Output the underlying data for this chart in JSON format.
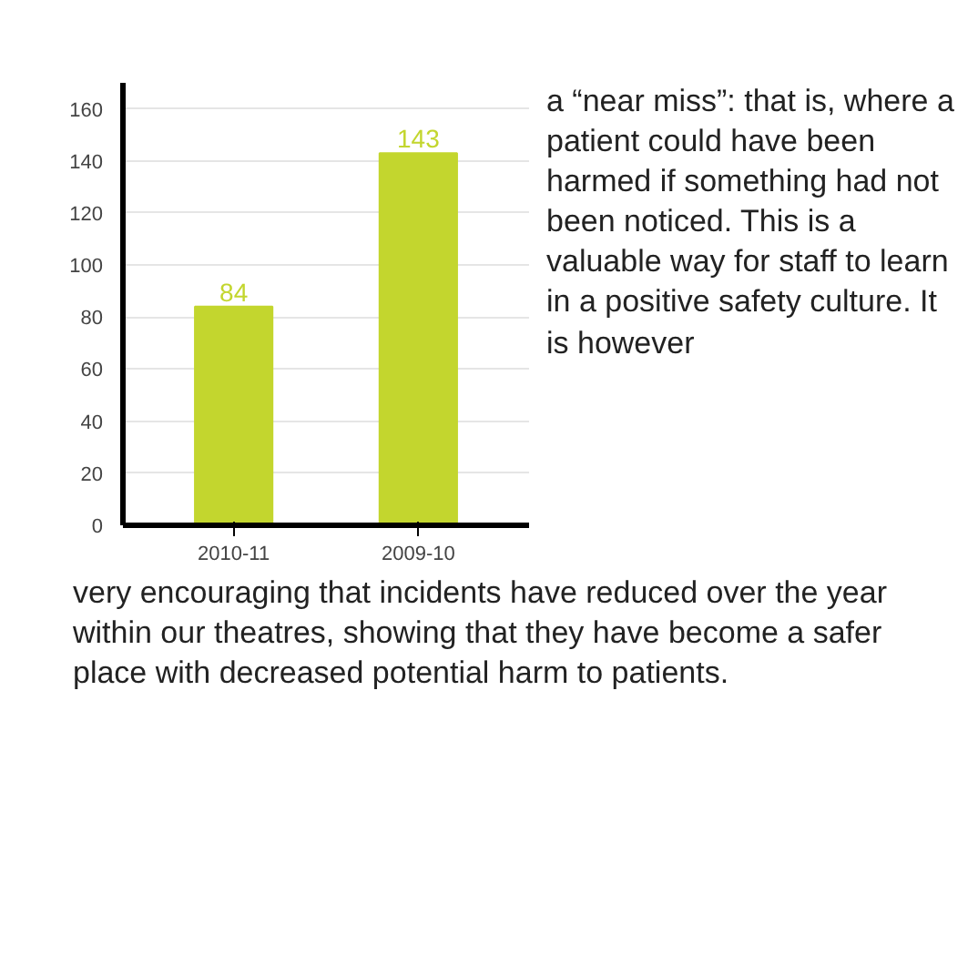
{
  "chart_data": {
    "type": "bar",
    "categories": [
      "2010-11",
      "2009-10"
    ],
    "values": [
      84,
      143
    ],
    "color": "#c3d62e",
    "ylim": [
      0,
      170
    ],
    "yticks": [
      0,
      20,
      40,
      60,
      80,
      100,
      120,
      140,
      160
    ],
    "grid": "y",
    "data_labels": true,
    "annotations": [
      "a “near miss”: that is, where a patient could have been harmed if something had not been noticed. This is a valuable way for staff to learn in a positive safety culture. It is however",
      "very encouraging that incidents have reduced over the year within our theatres, showing that they have become a safer place with decreased potential harm to patients."
    ]
  }
}
